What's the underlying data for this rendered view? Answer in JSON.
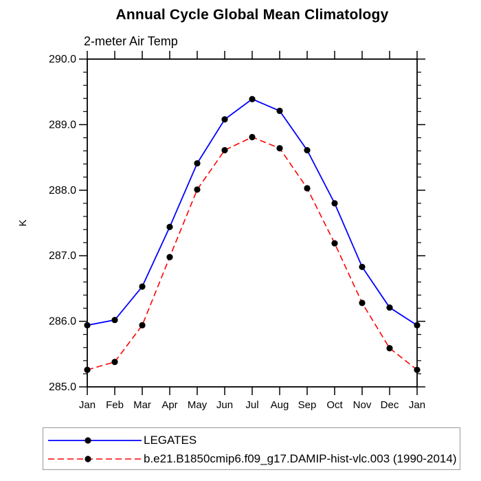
{
  "chart_data": {
    "type": "line",
    "title": "Annual Cycle Global Mean Climatology",
    "subtitle": "2-meter Air Temp",
    "ylabel": "K",
    "xlabel": "",
    "categories": [
      "Jan",
      "Feb",
      "Mar",
      "Apr",
      "May",
      "Jun",
      "Jul",
      "Aug",
      "Sep",
      "Oct",
      "Nov",
      "Dec",
      "Jan"
    ],
    "ylim": [
      285.0,
      290.0
    ],
    "y_major_ticks": [
      "285.0",
      "286.0",
      "287.0",
      "288.0",
      "289.0",
      "290.0"
    ],
    "y_minor_step": 0.2,
    "grid": false,
    "legend_position": "bottom-box",
    "axis_color": "#000000",
    "series": [
      {
        "name": "LEGATES",
        "color": "#0000ff",
        "line_style": "solid",
        "marker": "filled-circle",
        "marker_color": "#000000",
        "values": [
          285.94,
          286.02,
          286.53,
          287.44,
          288.41,
          289.08,
          289.39,
          289.21,
          288.61,
          287.8,
          286.83,
          286.21,
          285.94
        ]
      },
      {
        "name": "b.e21.B1850cmip6.f09_g17.DAMIP-hist-vlc.003 (1990-2014)",
        "color": "#ff0000",
        "line_style": "dashed",
        "marker": "filled-circle",
        "marker_color": "#000000",
        "values": [
          285.26,
          285.38,
          285.94,
          286.98,
          288.01,
          288.61,
          288.81,
          288.64,
          288.03,
          287.19,
          286.28,
          285.59,
          285.26
        ]
      }
    ]
  }
}
